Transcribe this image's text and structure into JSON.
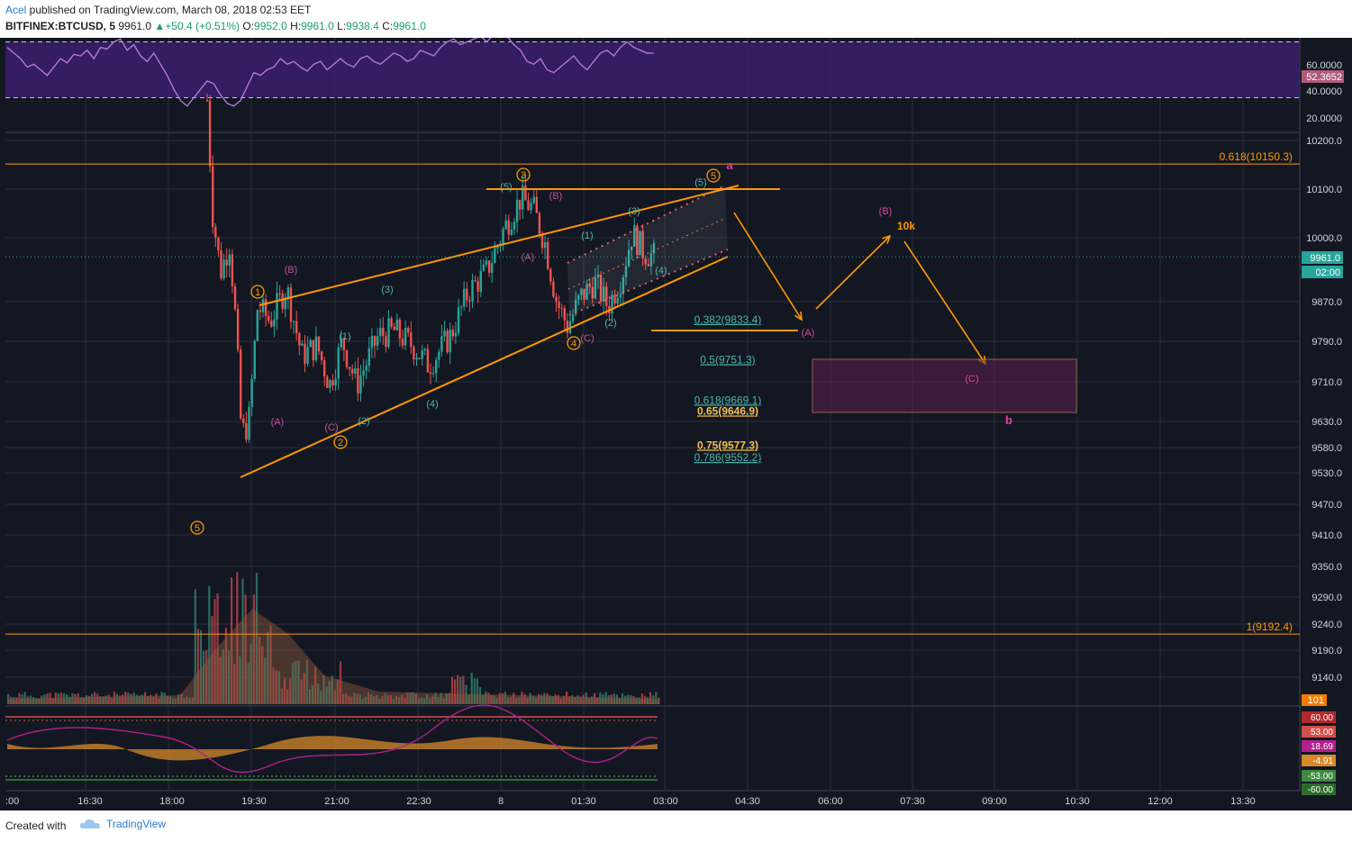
{
  "header": {
    "author": "Acel",
    "publish_text": " published on TradingView.com, March 08, 2018 02:53 EET",
    "symbol": "BITFINEX:BTCUSD, 5",
    "last": "9961.0",
    "change": "+50.4 (+0.51%)",
    "open_label": "O:",
    "open": "9952.0",
    "high_label": "H:",
    "high": "9961.0",
    "low_label": "L:",
    "low": "9938.4",
    "close_label": "C:",
    "close": "9961.0"
  },
  "footer": {
    "created_with": "Created with",
    "brand": "TradingView"
  },
  "colors": {
    "background": "#131722",
    "grid": "#2a2e39",
    "up": "#26a69a",
    "down": "#ef5350",
    "orange": "#ff9800",
    "pink": "#e040a0",
    "rsi_band": "#3b1f6b",
    "teal_text": "#4db6ac"
  },
  "chart_data": {
    "type": "candlestick",
    "price_axis": {
      "ticks": [
        "10200.0",
        "10100.0",
        "10000.0",
        "9870.0",
        "9790.0",
        "9710.0",
        "9630.0",
        "9580.0",
        "9530.0",
        "9470.0",
        "9410.0",
        "9350.0",
        "9290.0",
        "9240.0",
        "9190.0",
        "9140.0"
      ],
      "last_price_label": "9961.0",
      "countdown_label": "02:00"
    },
    "time_axis": {
      "ticks": [
        ":00",
        "16:30",
        "18:00",
        "19:30",
        "21:00",
        "22:30",
        "8",
        "01:30",
        "03:00",
        "04:30",
        "06:00",
        "07:30",
        "09:00",
        "10:30",
        "12:00",
        "13:30"
      ]
    },
    "rsi": {
      "ticks": [
        "60.0000",
        "40.0000",
        "20.0000"
      ],
      "value_label": "52.3652",
      "values": [
        66,
        62,
        58,
        52,
        54,
        50,
        46,
        52,
        58,
        55,
        61,
        60,
        64,
        58,
        66,
        65,
        70,
        72,
        64,
        68,
        60,
        56,
        62,
        54,
        46,
        36,
        28,
        24,
        30,
        36,
        42,
        40,
        32,
        26,
        24,
        28,
        38,
        48,
        46,
        50,
        52,
        58,
        54,
        56,
        52,
        49,
        54,
        56,
        50,
        54,
        58,
        54,
        52,
        58,
        60,
        56,
        54,
        58,
        62,
        60,
        56,
        58,
        64,
        62,
        60,
        66,
        70,
        72,
        68,
        70,
        72,
        74,
        70,
        76,
        78,
        74,
        68,
        64,
        56,
        54,
        58,
        50,
        48,
        52,
        56,
        60,
        54,
        50,
        56,
        62,
        64,
        60,
        66,
        70,
        66,
        64,
        62,
        62
      ]
    },
    "fib_levels": [
      {
        "label": "0.618(10150.3)",
        "price": 10150.3
      },
      {
        "label": "0.382(9833.4)",
        "price": 9833.4
      },
      {
        "label": "0.5(9751.3)",
        "price": 9751.3
      },
      {
        "label": "0.618(9669.1)",
        "price": 9669.1
      },
      {
        "label": "0.65(9646.9)",
        "price": 9646.9
      },
      {
        "label": "0.75(9577.3)",
        "price": 9577.3
      },
      {
        "label": "0.786(9552.2)",
        "price": 9552.2
      },
      {
        "label": "1(9192.4)",
        "price": 9192.4
      }
    ],
    "annotations": {
      "circled": [
        "1",
        "2",
        "3",
        "4",
        "5",
        "5"
      ],
      "primary_labels": [
        "(1)",
        "(2)",
        "(3)",
        "(4)",
        "(5)"
      ],
      "corrective_labels": [
        "(A)",
        "(B)",
        "(C)"
      ],
      "wave_letters": [
        "a",
        "b"
      ],
      "target_label": "10k"
    },
    "volume_label": "101",
    "macd_labels": [
      "60.00",
      "53.00",
      "18.69",
      "-4.91",
      "-53.00",
      "-60.00"
    ]
  }
}
